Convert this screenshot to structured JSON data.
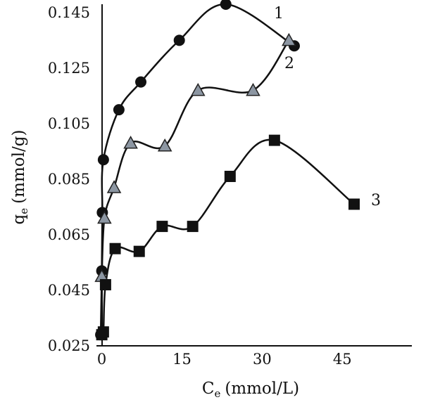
{
  "chart_data": {
    "type": "scatter",
    "xlabel": "C",
    "xlabel_sub": "e",
    "xlabel_unit": "(mmol/L)",
    "ylabel": "q",
    "ylabel_sub": "e",
    "ylabel_unit": "(mmol/g)",
    "xlim": [
      -1,
      58
    ],
    "ylim": [
      0.025,
      0.148
    ],
    "x_ticks": [
      0,
      15,
      30,
      45
    ],
    "x_tick_labels": [
      "0",
      "15",
      "30",
      "45"
    ],
    "y_ticks": [
      0.025,
      0.045,
      0.065,
      0.085,
      0.105,
      0.125,
      0.145
    ],
    "y_tick_labels": [
      "0.025",
      "0.045",
      "0.065",
      "0.085",
      "0.105",
      "0.125",
      "0.145"
    ],
    "grid": false,
    "series": [
      {
        "name": "1",
        "marker": "circle",
        "color": "#111111",
        "x": [
          -0.2,
          0,
          0.1,
          0.3,
          3.2,
          7.3,
          14.5,
          23.2,
          36
        ],
        "y": [
          0.029,
          0.052,
          0.073,
          0.092,
          0.11,
          0.12,
          0.135,
          0.148,
          0.133
        ]
      },
      {
        "name": "2",
        "marker": "triangle",
        "color": "#8c96a2",
        "x": [
          0,
          0.5,
          2.3,
          5.4,
          11.8,
          18,
          28.3,
          35
        ],
        "y": [
          0.05,
          0.071,
          0.082,
          0.098,
          0.097,
          0.117,
          0.117,
          0.135
        ]
      },
      {
        "name": "3",
        "marker": "square",
        "color": "#111111",
        "x": [
          0,
          0.3,
          0.7,
          2.5,
          7,
          11.3,
          17,
          24,
          32.3,
          47.2
        ],
        "y": [
          0.029,
          0.03,
          0.047,
          0.06,
          0.059,
          0.068,
          0.068,
          0.086,
          0.099,
          0.076
        ]
      }
    ]
  }
}
